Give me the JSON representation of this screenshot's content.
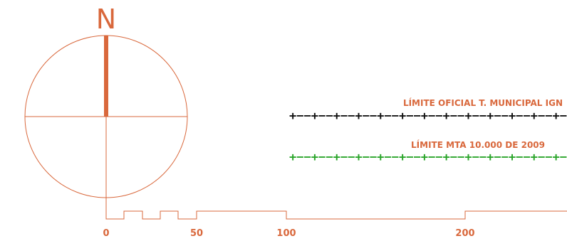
{
  "north_arrow": {
    "label": "N",
    "icon": "north-arrow-icon",
    "color": "#d9683c"
  },
  "legend": {
    "items": [
      {
        "label": "LÍMITE OFICIAL T. MUNICIPAL IGN",
        "line_pattern": "+−−+−−+−−+−−+−−+−−+−−+−−+−−+−−+−−+−−+−",
        "line_color": "#111111"
      },
      {
        "label": "LÍMITE MTA 10.000 DE 2009",
        "line_pattern": "+−−+−−+−−+−−+−−+−−+−−+−−+−−+−−+−−+−−+−",
        "line_color": "#2aa52a"
      }
    ]
  },
  "scale_bar": {
    "ticks": [
      "0",
      "50",
      "100",
      "200"
    ],
    "color": "#d9683c"
  }
}
